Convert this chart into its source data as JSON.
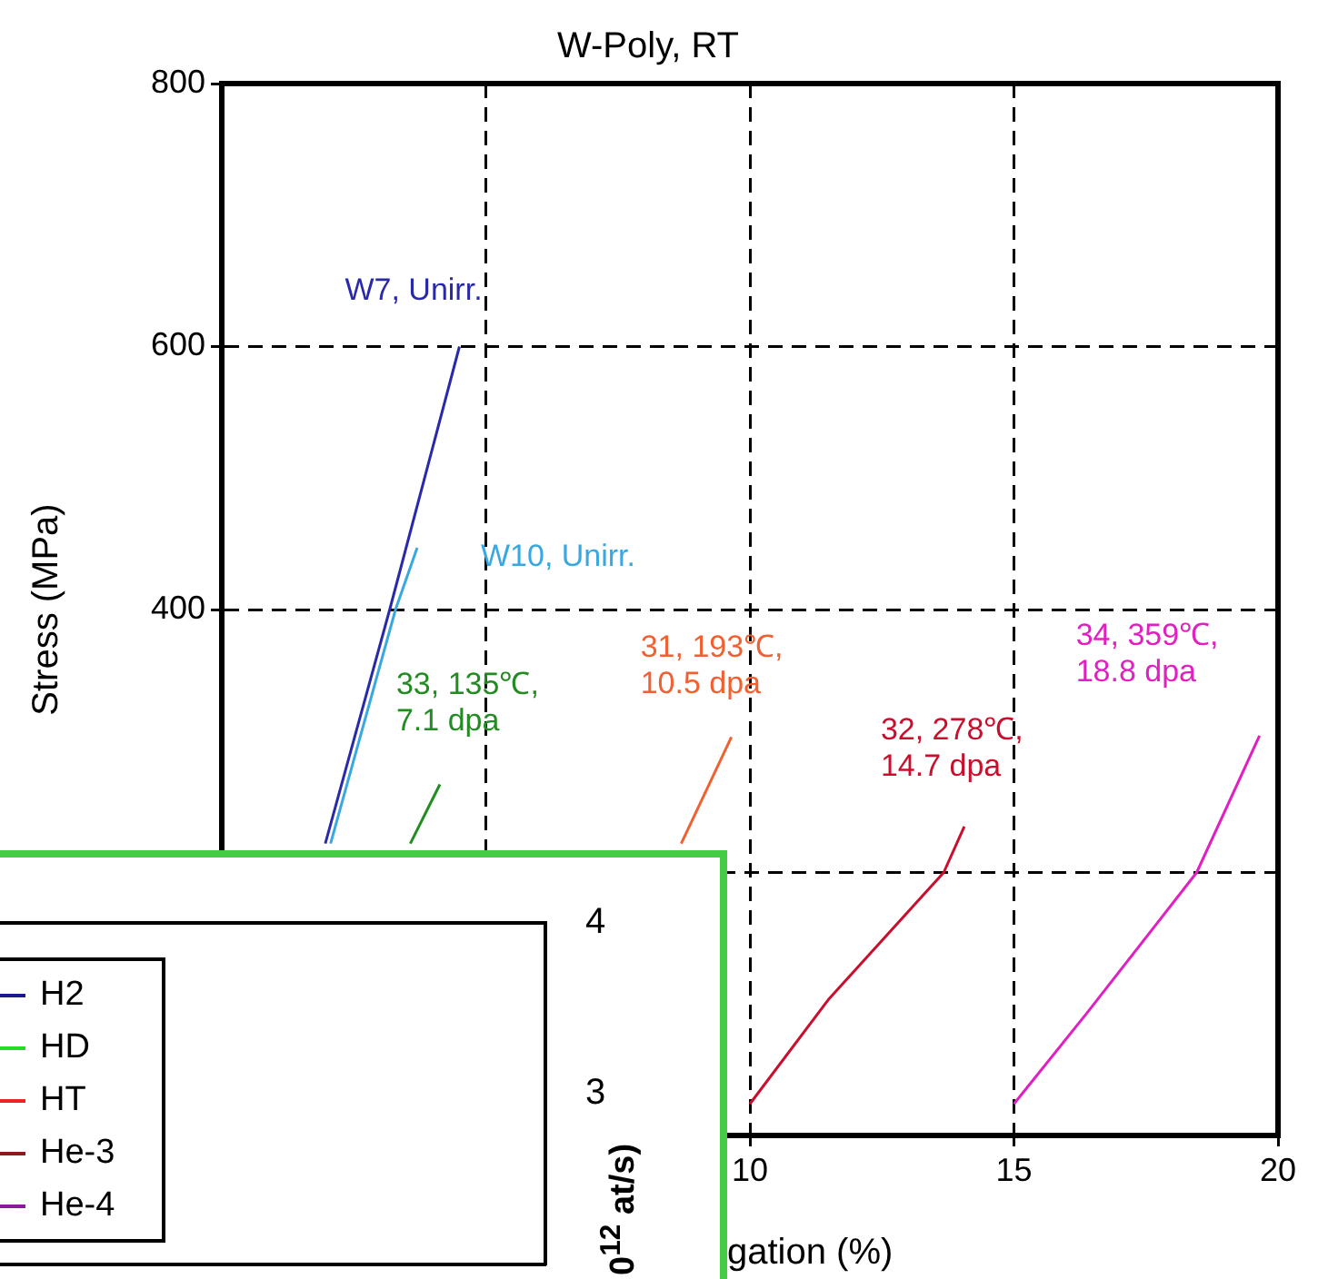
{
  "chart_data": [
    {
      "type": "line",
      "title": "W-Poly, RT",
      "xlabel": "gation (%)",
      "ylabel": "Stress (MPa)",
      "xlim": [
        0,
        20
      ],
      "xticks": [
        {
          "value": 0,
          "label": null
        },
        {
          "value": 5,
          "label": null
        },
        10,
        15,
        20
      ],
      "ylim": [
        0,
        800
      ],
      "yticks": [
        {
          "value": 0,
          "label": null
        },
        {
          "value": 200,
          "label": null
        },
        400,
        600,
        800
      ],
      "grid": true,
      "line_style": "solid",
      "marker": "none",
      "legend": false,
      "series": [
        {
          "name": "W7, Unirr.",
          "color": "#2a2aa8",
          "x": [
            1.96,
            3.18,
            4.5
          ],
          "values": [
            222,
            400,
            600
          ]
        },
        {
          "name": "W10, Unirr.",
          "color": "#3aa8e0",
          "x": [
            2.06,
            3.29,
            3.7
          ],
          "values": [
            222,
            400,
            447
          ]
        },
        {
          "name": "33, 135℃,\n7.1 dpa",
          "color": "#228b22",
          "x": [
            3.57,
            4.13
          ],
          "values": [
            222,
            267
          ]
        },
        {
          "name": "31, 193℃,\n10.5 dpa",
          "color": "#f06030",
          "x": [
            8.7,
            9.65
          ],
          "values": [
            222,
            303
          ]
        },
        {
          "name": "32, 278℃,\n14.7 dpa",
          "color": "#c8102e",
          "x": [
            10,
            11.5,
            13.67,
            14.06
          ],
          "values": [
            24,
            104,
            200,
            235
          ]
        },
        {
          "name": "34, 359℃,\n18.8 dpa",
          "color": "#e020c0",
          "x": [
            15,
            16.4,
            18.46,
            19.65
          ],
          "values": [
            24,
            94,
            200,
            304
          ]
        }
      ]
    },
    {
      "type": "line",
      "ylabel": "0$^{12}$ at/s)",
      "ylim": [
        2,
        4
      ],
      "yticks": [
        3,
        4
      ],
      "legend": "left",
      "tick_labels": "y",
      "series": [
        {
          "name": "H2",
          "color": "#1a1a8c"
        },
        {
          "name": "HD",
          "color": "#22dd22"
        },
        {
          "name": "HT",
          "color": "#ee2222"
        },
        {
          "name": "He-3",
          "color": "#8b1a1a"
        },
        {
          "name": "He-4",
          "color": "#8a1a9a"
        }
      ]
    }
  ]
}
